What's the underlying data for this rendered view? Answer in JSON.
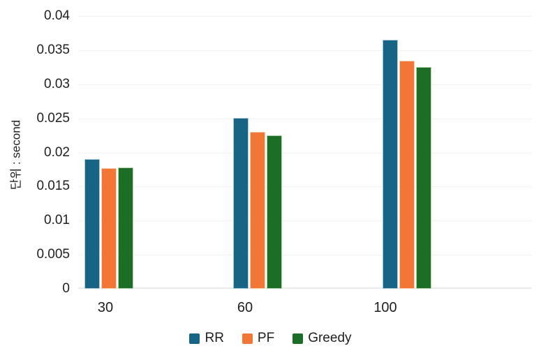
{
  "chart_data": {
    "type": "bar",
    "title": "",
    "categories": [
      "30",
      "60",
      "100"
    ],
    "series": [
      {
        "name": "RR",
        "color": "#176485",
        "border_color": "#a9cbdb",
        "values": [
          0.019,
          0.0251,
          0.0365
        ]
      },
      {
        "name": "PF",
        "color": "#f27636",
        "border_color": "#f9d0b4",
        "values": [
          0.0177,
          0.023,
          0.0335
        ]
      },
      {
        "name": "Greedy",
        "color": "#1c6e27",
        "border_color": "#b2d3ab",
        "values": [
          0.0178,
          0.0225,
          0.0325
        ]
      }
    ],
    "xlabel": "",
    "ylabel": "단위 : second",
    "ylim": [
      0,
      0.04
    ],
    "ytick_step": 0.005,
    "ytick_labels": [
      "0",
      "0.005",
      "0.01",
      "0.015",
      "0.02",
      "0.025",
      "0.03",
      "0.035",
      "0.04"
    ],
    "grid": true,
    "legend_position": "bottom",
    "colors": {
      "grid": "#f1f1f1",
      "baseline": "#ebebeb",
      "text": "#1f1f1f",
      "background": "#ffffff"
    }
  }
}
